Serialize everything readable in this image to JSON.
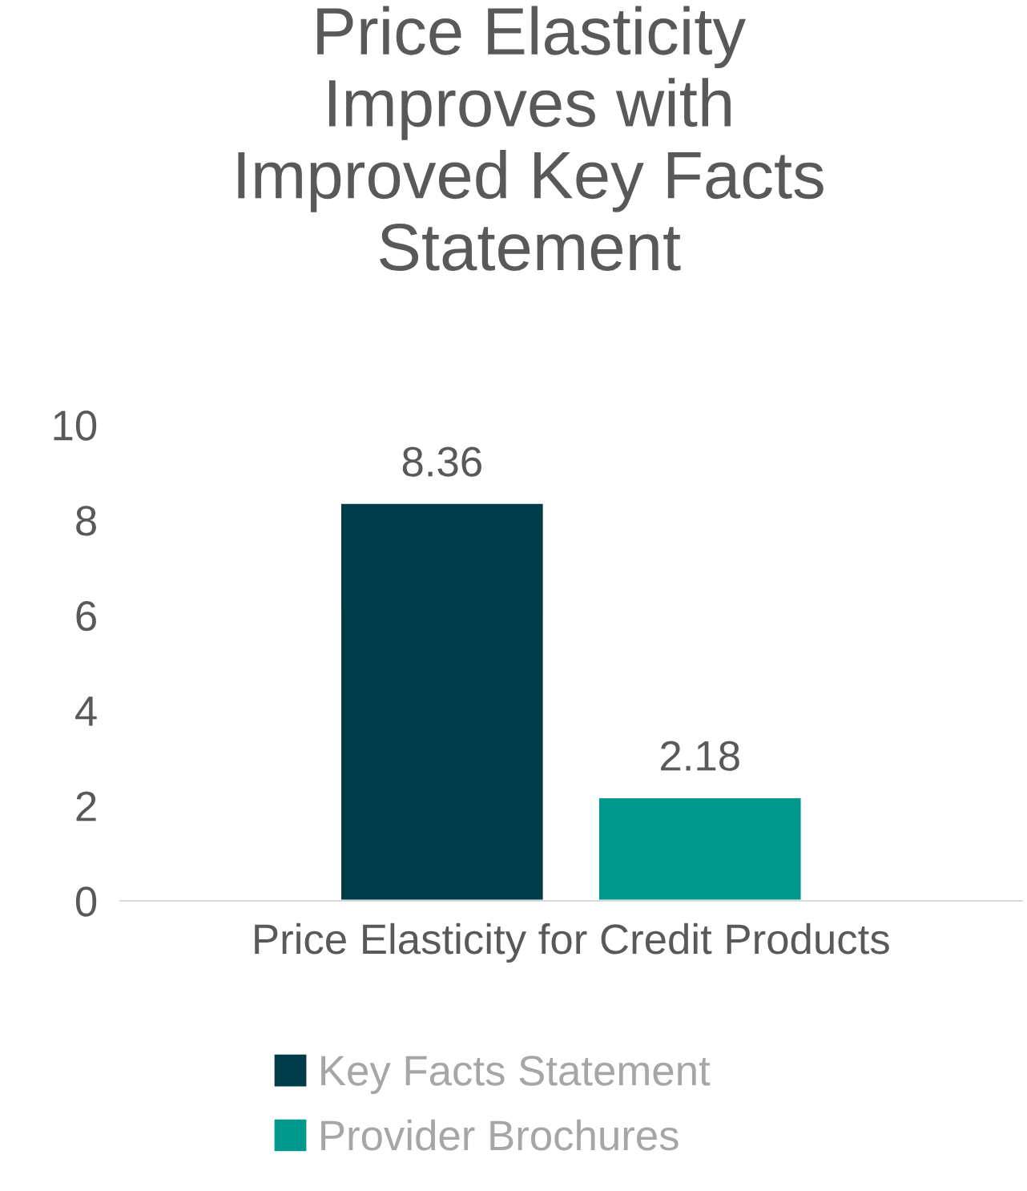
{
  "chart_data": {
    "type": "bar",
    "title": "Price Elasticity\nImproves with\nImproved Key Facts\nStatement",
    "categories": [
      "Price Elasticity for Credit Products"
    ],
    "series": [
      {
        "name": "Key Facts Statement",
        "color": "#003b4a",
        "values": [
          8.36
        ]
      },
      {
        "name": "Provider Brochures",
        "color": "#00978c",
        "values": [
          2.18
        ]
      }
    ],
    "ylim": [
      0,
      10
    ],
    "yticks": [
      0,
      2,
      4,
      6,
      8,
      10
    ],
    "data_labels": true,
    "grid": false,
    "legend": "bottom"
  }
}
